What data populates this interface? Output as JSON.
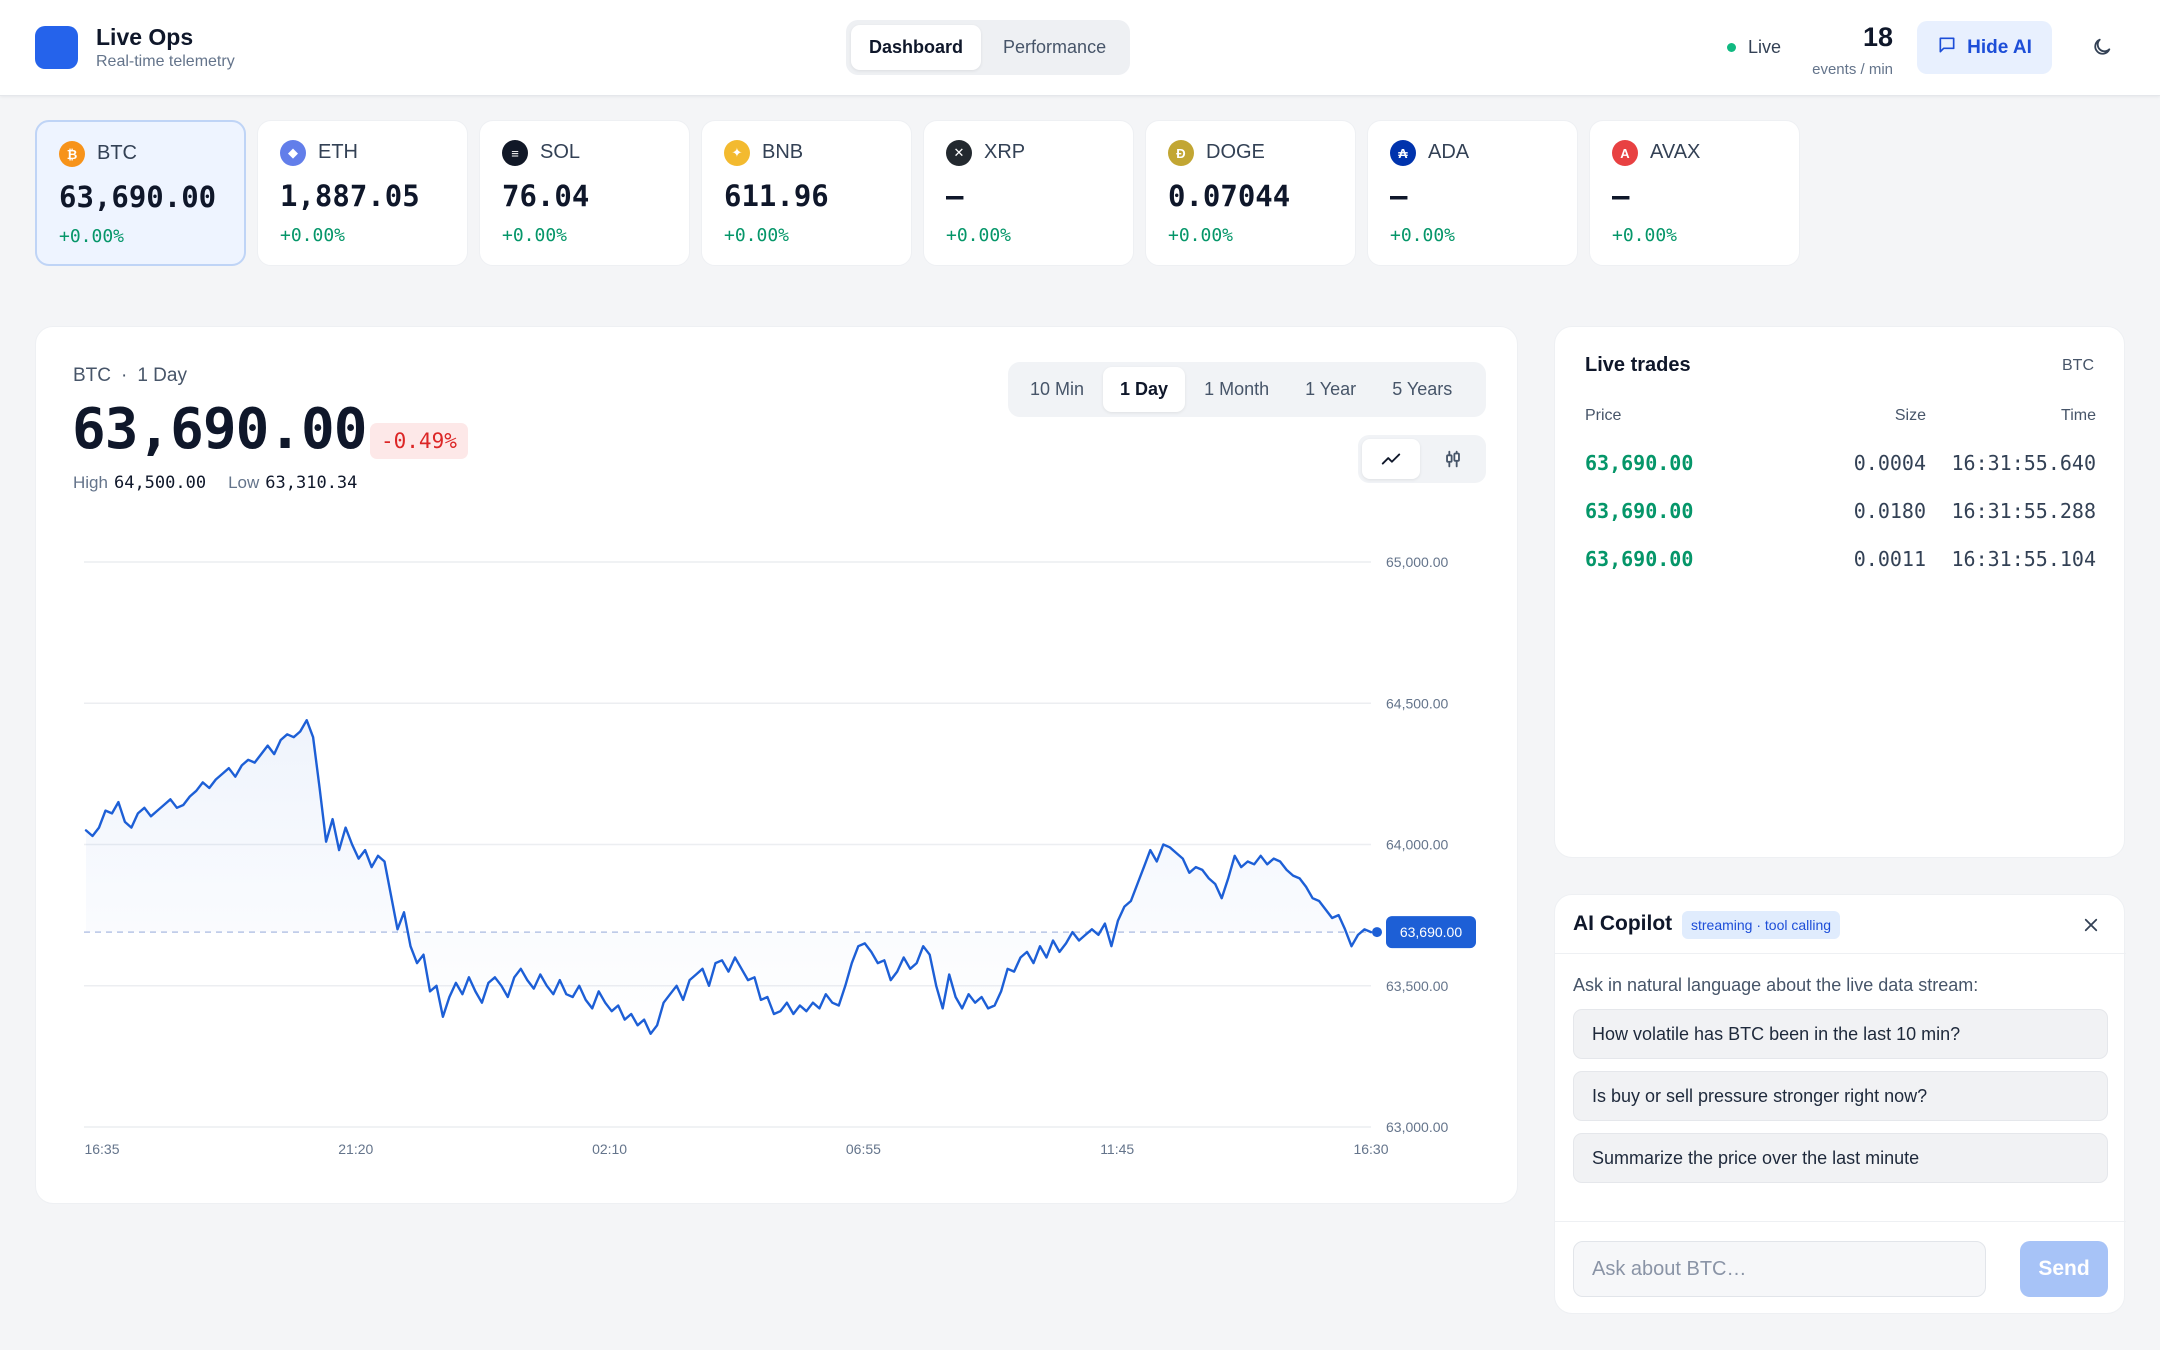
{
  "app": {
    "title": "Live Ops",
    "subtitle": "Real-time telemetry"
  },
  "nav": {
    "tabs": [
      {
        "label": "Dashboard",
        "active": true
      },
      {
        "label": "Performance",
        "active": false
      }
    ]
  },
  "status": {
    "live_label": "Live",
    "events_value": "18",
    "events_label": "events / min",
    "hide_ai_label": "Hide AI"
  },
  "tickers": [
    {
      "symbol": "BTC",
      "price": "63,690.00",
      "change": "+0.00%",
      "color": "#f7931a",
      "glyph": "₿",
      "active": true
    },
    {
      "symbol": "ETH",
      "price": "1,887.05",
      "change": "+0.00%",
      "color": "#627eea",
      "glyph": "◆",
      "active": false
    },
    {
      "symbol": "SOL",
      "price": "76.04",
      "change": "+0.00%",
      "color": "#111827",
      "glyph": "≡",
      "active": false
    },
    {
      "symbol": "BNB",
      "price": "611.96",
      "change": "+0.00%",
      "color": "#f3ba2f",
      "glyph": "✦",
      "active": false
    },
    {
      "symbol": "XRP",
      "price": "—",
      "change": "+0.00%",
      "color": "#23292f",
      "glyph": "✕",
      "active": false
    },
    {
      "symbol": "DOGE",
      "price": "0.07044",
      "change": "+0.00%",
      "color": "#c2a633",
      "glyph": "Ð",
      "active": false
    },
    {
      "symbol": "ADA",
      "price": "—",
      "change": "+0.00%",
      "color": "#0033ad",
      "glyph": "₳",
      "active": false
    },
    {
      "symbol": "AVAX",
      "price": "—",
      "change": "+0.00%",
      "color": "#e84142",
      "glyph": "A",
      "active": false
    }
  ],
  "chart_panel": {
    "symbol": "BTC",
    "separator": "·",
    "range": "1 Day",
    "price": "63,690.00",
    "change": "-0.49%",
    "high_label": "High",
    "high": "64,500.00",
    "low_label": "Low",
    "low": "63,310.34",
    "range_tabs": [
      {
        "label": "10 Min",
        "active": false
      },
      {
        "label": "1 Day",
        "active": true
      },
      {
        "label": "1 Month",
        "active": false
      },
      {
        "label": "1 Year",
        "active": false
      },
      {
        "label": "5 Years",
        "active": false
      }
    ],
    "chart_types": [
      "line-chart-icon",
      "candlestick-icon"
    ]
  },
  "chart_data": {
    "type": "line",
    "ylim": [
      63000,
      65000
    ],
    "y_ticks": [
      "65,000.00",
      "64,500.00",
      "64,000.00",
      "63,500.00",
      "63,000.00"
    ],
    "y_tick_values": [
      65000,
      64500,
      64000,
      63500,
      63000
    ],
    "x_ticks": [
      "16:35",
      "21:20",
      "02:10",
      "06:55",
      "11:45",
      "16:30"
    ],
    "reference_value": 63690,
    "current_label": "63,690.00",
    "line_color": "#1d5fd6",
    "series": [
      {
        "values": [
          64050,
          64030,
          64060,
          64120,
          64110,
          64150,
          64080,
          64060,
          64110,
          64130,
          64100,
          64120,
          64140,
          64160,
          64130,
          64140,
          64170,
          64190,
          64220,
          64200,
          64230,
          64250,
          64270,
          64240,
          64280,
          64300,
          64290,
          64320,
          64350,
          64320,
          64370,
          64390,
          64380,
          64400,
          64440,
          64380,
          64200,
          64010,
          64090,
          63980,
          64060,
          64000,
          63950,
          63980,
          63920,
          63960,
          63940,
          63820,
          63700,
          63760,
          63640,
          63580,
          63610,
          63480,
          63500,
          63390,
          63460,
          63510,
          63470,
          63530,
          63480,
          63440,
          63510,
          63530,
          63500,
          63460,
          63530,
          63560,
          63520,
          63490,
          63540,
          63500,
          63470,
          63520,
          63470,
          63460,
          63500,
          63450,
          63420,
          63480,
          63440,
          63410,
          63430,
          63380,
          63400,
          63360,
          63380,
          63330,
          63360,
          63440,
          63470,
          63500,
          63450,
          63520,
          63540,
          63560,
          63500,
          63580,
          63590,
          63550,
          63600,
          63560,
          63520,
          63530,
          63450,
          63460,
          63400,
          63410,
          63440,
          63400,
          63430,
          63410,
          63440,
          63420,
          63470,
          63440,
          63430,
          63500,
          63580,
          63640,
          63650,
          63620,
          63580,
          63590,
          63520,
          63550,
          63600,
          63560,
          63580,
          63640,
          63610,
          63500,
          63420,
          63540,
          63460,
          63420,
          63470,
          63440,
          63460,
          63420,
          63430,
          63480,
          63560,
          63550,
          63600,
          63620,
          63580,
          63640,
          63600,
          63660,
          63620,
          63650,
          63690,
          63660,
          63680,
          63700,
          63680,
          63720,
          63640,
          63730,
          63780,
          63800,
          63860,
          63920,
          63980,
          63940,
          64000,
          63990,
          63970,
          63950,
          63900,
          63920,
          63910,
          63880,
          63860,
          63810,
          63880,
          63960,
          63920,
          63940,
          63930,
          63960,
          63930,
          63950,
          63940,
          63910,
          63890,
          63880,
          63850,
          63810,
          63800,
          63770,
          63740,
          63750,
          63700,
          63640,
          63680,
          63700,
          63690
        ]
      }
    ]
  },
  "trades": {
    "title": "Live trades",
    "symbol": "BTC",
    "headers": {
      "price": "Price",
      "size": "Size",
      "time": "Time"
    },
    "rows": [
      {
        "price": "63,690.00",
        "size": "0.0004",
        "time": "16:31:55.640"
      },
      {
        "price": "63,690.00",
        "size": "0.0180",
        "time": "16:31:55.288"
      },
      {
        "price": "63,690.00",
        "size": "0.0011",
        "time": "16:31:55.104"
      }
    ]
  },
  "ai": {
    "title": "AI Copilot",
    "badge": "streaming · tool calling",
    "intro": "Ask in natural language about the live data stream:",
    "suggestions": [
      "How volatile has BTC been in the last 10 min?",
      "Is buy or sell pressure stronger right now?",
      "Summarize the price over the last minute"
    ],
    "input_placeholder": "Ask about BTC…",
    "send_label": "Send"
  }
}
